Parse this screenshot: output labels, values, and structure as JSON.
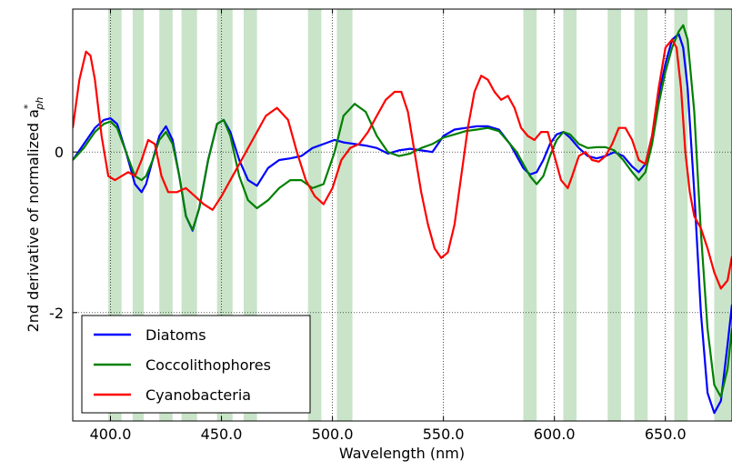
{
  "chart_data": {
    "type": "line",
    "xlabel": "Wavelength (nm)",
    "ylabel": "2nd derivative of normalized a",
    "ylabel_superscript": "*",
    "ylabel_subscript": "ph",
    "xlim": [
      383,
      680
    ],
    "ylim": [
      -3.35,
      1.78
    ],
    "x_ticks": [
      400,
      450,
      500,
      550,
      600,
      650
    ],
    "x_tick_labels": [
      "400.0",
      "450.0",
      "500.0",
      "550.0",
      "600.0",
      "650.0"
    ],
    "y_ticks": [
      -2,
      0
    ],
    "y_tick_labels": [
      "-2",
      "0"
    ],
    "grid": "dotted at ticks",
    "legend_position": "lower-left",
    "shaded_bands_nm": [
      [
        399,
        405
      ],
      [
        410,
        415
      ],
      [
        422,
        428
      ],
      [
        432,
        439
      ],
      [
        448,
        455
      ],
      [
        460,
        466
      ],
      [
        489,
        495
      ],
      [
        502,
        509
      ],
      [
        586,
        592
      ],
      [
        604,
        610
      ],
      [
        624,
        630
      ],
      [
        636,
        642
      ],
      [
        654,
        660
      ],
      [
        672,
        680
      ]
    ],
    "shade_color": "#c9e4c9",
    "series": [
      {
        "name": "Diatoms",
        "color": "#0000ff",
        "x": [
          383,
          388,
          393,
          397,
          400,
          403,
          407,
          411,
          414,
          416,
          419,
          422,
          425,
          428,
          431,
          434,
          437,
          440,
          444,
          448,
          451,
          454,
          458,
          462,
          466,
          471,
          476,
          481,
          486,
          491,
          496,
          501,
          505,
          510,
          515,
          520,
          525,
          530,
          535,
          540,
          545,
          550,
          555,
          560,
          565,
          570,
          575,
          580,
          583,
          586,
          589,
          592,
          595,
          598,
          601,
          604,
          607,
          611,
          615,
          619,
          623,
          627,
          631,
          635,
          638,
          641,
          644,
          647,
          650,
          653,
          656,
          658,
          660,
          663,
          666,
          669,
          672,
          675,
          678,
          680
        ],
        "y": [
          -0.1,
          0.1,
          0.3,
          0.4,
          0.42,
          0.35,
          0.0,
          -0.4,
          -0.5,
          -0.4,
          -0.1,
          0.2,
          0.32,
          0.15,
          -0.3,
          -0.8,
          -0.98,
          -0.7,
          -0.1,
          0.35,
          0.4,
          0.25,
          -0.1,
          -0.35,
          -0.42,
          -0.2,
          -0.1,
          -0.08,
          -0.05,
          0.05,
          0.1,
          0.15,
          0.12,
          0.1,
          0.08,
          0.05,
          -0.02,
          0.02,
          0.04,
          0.02,
          0.0,
          0.2,
          0.28,
          0.3,
          0.32,
          0.32,
          0.28,
          0.1,
          -0.05,
          -0.2,
          -0.28,
          -0.25,
          -0.1,
          0.1,
          0.22,
          0.25,
          0.18,
          0.05,
          -0.05,
          -0.08,
          -0.05,
          0.0,
          -0.05,
          -0.18,
          -0.25,
          -0.15,
          0.2,
          0.7,
          1.1,
          1.4,
          1.47,
          1.3,
          0.8,
          -0.5,
          -2.0,
          -3.0,
          -3.25,
          -3.1,
          -2.4,
          -1.9
        ]
      },
      {
        "name": "Coccolithophores",
        "color": "#008000",
        "x": [
          383,
          388,
          393,
          397,
          400,
          403,
          407,
          411,
          414,
          416,
          419,
          422,
          425,
          428,
          431,
          434,
          437,
          440,
          444,
          448,
          451,
          454,
          458,
          462,
          466,
          471,
          476,
          481,
          486,
          491,
          496,
          501,
          505,
          510,
          515,
          520,
          525,
          530,
          535,
          540,
          545,
          550,
          555,
          560,
          565,
          570,
          575,
          580,
          583,
          586,
          589,
          592,
          595,
          598,
          601,
          604,
          607,
          611,
          615,
          619,
          623,
          627,
          631,
          635,
          638,
          641,
          644,
          647,
          650,
          653,
          656,
          658,
          660,
          663,
          666,
          669,
          672,
          675,
          678,
          680
        ],
        "y": [
          -0.1,
          0.05,
          0.25,
          0.35,
          0.38,
          0.3,
          0.0,
          -0.3,
          -0.35,
          -0.3,
          -0.1,
          0.15,
          0.25,
          0.1,
          -0.3,
          -0.8,
          -0.97,
          -0.7,
          -0.1,
          0.35,
          0.4,
          0.2,
          -0.3,
          -0.6,
          -0.7,
          -0.6,
          -0.45,
          -0.35,
          -0.35,
          -0.45,
          -0.4,
          0.0,
          0.45,
          0.6,
          0.5,
          0.2,
          0.0,
          -0.05,
          -0.02,
          0.05,
          0.1,
          0.18,
          0.22,
          0.26,
          0.28,
          0.3,
          0.26,
          0.1,
          0.0,
          -0.15,
          -0.3,
          -0.4,
          -0.3,
          -0.05,
          0.15,
          0.25,
          0.22,
          0.1,
          0.05,
          0.06,
          0.06,
          0.02,
          -0.1,
          -0.25,
          -0.35,
          -0.25,
          0.1,
          0.6,
          1.0,
          1.3,
          1.5,
          1.58,
          1.4,
          0.5,
          -1.0,
          -2.2,
          -2.9,
          -3.05,
          -2.7,
          -2.2
        ]
      },
      {
        "name": "Cyanobacteria",
        "color": "#ff0000",
        "x": [
          383,
          386,
          389,
          391,
          393,
          396,
          399,
          402,
          405,
          408,
          411,
          414,
          417,
          420,
          423,
          426,
          430,
          434,
          438,
          442,
          446,
          450,
          455,
          460,
          465,
          470,
          475,
          480,
          484,
          488,
          492,
          496,
          500,
          504,
          508,
          512,
          516,
          520,
          524,
          528,
          531,
          534,
          537,
          540,
          543,
          546,
          549,
          552,
          555,
          558,
          561,
          564,
          567,
          570,
          573,
          576,
          579,
          582,
          585,
          588,
          591,
          594,
          597,
          600,
          603,
          606,
          608,
          611,
          614,
          617,
          620,
          623,
          626,
          629,
          632,
          635,
          638,
          641,
          644,
          647,
          650,
          653,
          655,
          657,
          659,
          661,
          663,
          666,
          669,
          672,
          675,
          678,
          680
        ],
        "y": [
          0.3,
          0.9,
          1.25,
          1.2,
          0.9,
          0.2,
          -0.3,
          -0.35,
          -0.3,
          -0.25,
          -0.3,
          -0.1,
          0.15,
          0.1,
          -0.3,
          -0.5,
          -0.5,
          -0.45,
          -0.55,
          -0.65,
          -0.72,
          -0.55,
          -0.3,
          -0.05,
          0.2,
          0.45,
          0.55,
          0.4,
          0.0,
          -0.35,
          -0.55,
          -0.65,
          -0.45,
          -0.1,
          0.05,
          0.1,
          0.25,
          0.45,
          0.65,
          0.75,
          0.75,
          0.5,
          0.0,
          -0.5,
          -0.9,
          -1.2,
          -1.32,
          -1.25,
          -0.9,
          -0.3,
          0.3,
          0.75,
          0.95,
          0.9,
          0.75,
          0.65,
          0.7,
          0.55,
          0.3,
          0.2,
          0.15,
          0.25,
          0.25,
          -0.05,
          -0.35,
          -0.45,
          -0.3,
          -0.05,
          0.0,
          -0.1,
          -0.12,
          -0.05,
          0.1,
          0.3,
          0.3,
          0.15,
          -0.1,
          -0.15,
          0.2,
          0.8,
          1.3,
          1.4,
          1.3,
          0.8,
          0.0,
          -0.5,
          -0.8,
          -0.95,
          -1.2,
          -1.5,
          -1.7,
          -1.6,
          -1.3
        ]
      }
    ]
  }
}
